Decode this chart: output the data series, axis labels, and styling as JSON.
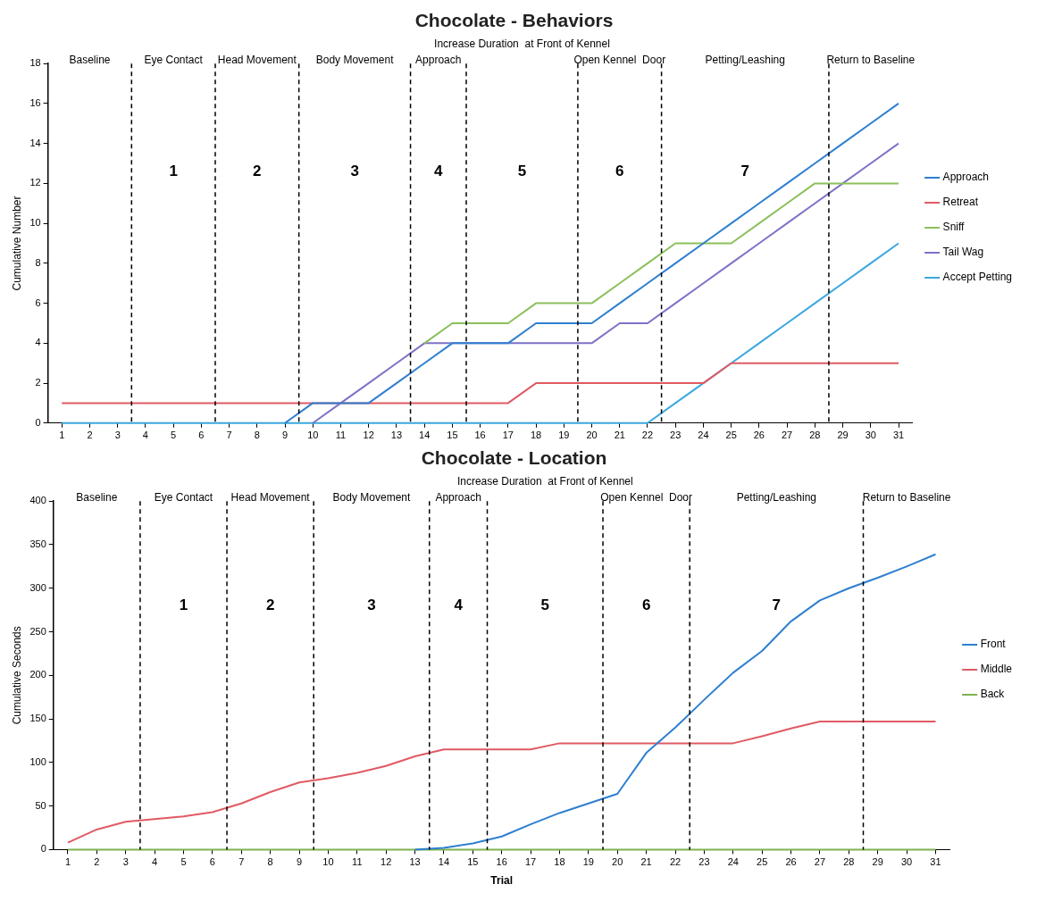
{
  "chart_data": [
    {
      "type": "line",
      "title": "Chocolate - Behaviors",
      "ylabel": "Cumulative Number",
      "x": [
        1,
        2,
        3,
        4,
        5,
        6,
        7,
        8,
        9,
        10,
        11,
        12,
        13,
        14,
        15,
        16,
        17,
        18,
        19,
        20,
        21,
        22,
        23,
        24,
        25,
        26,
        27,
        28,
        29,
        30,
        31
      ],
      "xlim": [
        0.5,
        31.5
      ],
      "xticks": [
        1,
        2,
        3,
        4,
        5,
        6,
        7,
        8,
        9,
        10,
        11,
        12,
        13,
        14,
        15,
        16,
        17,
        18,
        19,
        20,
        21,
        22,
        23,
        24,
        25,
        26,
        27,
        28,
        29,
        30,
        31
      ],
      "ylim": [
        0,
        18
      ],
      "yticks": [
        0,
        2,
        4,
        6,
        8,
        10,
        12,
        14,
        16,
        18
      ],
      "grid": false,
      "legend": "right",
      "series": [
        {
          "name": "Approach",
          "color": "#2e7fd0",
          "values": [
            null,
            null,
            null,
            null,
            null,
            null,
            null,
            null,
            0,
            1,
            1,
            1,
            2,
            3,
            4,
            4,
            4,
            5,
            5,
            5,
            6,
            7,
            8,
            9,
            10,
            11,
            12,
            13,
            14,
            15,
            16
          ]
        },
        {
          "name": "Retreat",
          "color": "#e05a64",
          "values": [
            1,
            1,
            1,
            1,
            1,
            1,
            1,
            1,
            1,
            1,
            1,
            1,
            1,
            1,
            1,
            1,
            1,
            2,
            2,
            2,
            2,
            2,
            2,
            2,
            3,
            3,
            3,
            3,
            3,
            3,
            3
          ]
        },
        {
          "name": "Sniff",
          "color": "#8cbf5a",
          "values": [
            null,
            null,
            null,
            null,
            null,
            null,
            null,
            null,
            null,
            null,
            null,
            null,
            null,
            4,
            5,
            5,
            5,
            6,
            6,
            6,
            7,
            8,
            9,
            9,
            9,
            10,
            11,
            12,
            12,
            12,
            12
          ]
        },
        {
          "name": "Tail Wag",
          "color": "#7d72c8",
          "values": [
            null,
            null,
            null,
            null,
            null,
            null,
            null,
            null,
            null,
            0,
            1,
            2,
            3,
            4,
            4,
            4,
            4,
            4,
            4,
            4,
            5,
            5,
            6,
            7,
            8,
            9,
            10,
            11,
            12,
            13,
            14
          ]
        },
        {
          "name": "Accept Petting",
          "color": "#3ba7e0",
          "values": [
            0,
            0,
            0,
            0,
            0,
            0,
            0,
            0,
            0,
            0,
            0,
            0,
            0,
            0,
            0,
            0,
            0,
            0,
            0,
            0,
            0,
            0,
            1,
            2,
            3,
            4,
            5,
            6,
            7,
            8,
            9
          ]
        }
      ],
      "ref_lines": [
        {
          "axis": "x",
          "value": 3.5,
          "color": "#000000",
          "line_style": "dashed"
        },
        {
          "axis": "x",
          "value": 6.5,
          "color": "#000000",
          "line_style": "dashed"
        },
        {
          "axis": "x",
          "value": 9.5,
          "color": "#000000",
          "line_style": "dashed"
        },
        {
          "axis": "x",
          "value": 13.5,
          "color": "#000000",
          "line_style": "dashed"
        },
        {
          "axis": "x",
          "value": 15.5,
          "color": "#000000",
          "line_style": "dashed"
        },
        {
          "axis": "x",
          "value": 19.5,
          "color": "#000000",
          "line_style": "dashed"
        },
        {
          "axis": "x",
          "value": 22.5,
          "color": "#000000",
          "line_style": "dashed"
        },
        {
          "axis": "x",
          "value": 28.5,
          "color": "#000000",
          "line_style": "dashed"
        }
      ],
      "annotations": [
        "Baseline",
        "Eye Contact",
        "Head Movement",
        "Body Movement",
        "Approach",
        "Increase Duration  at Front of Kennel",
        "Open Kennel  Door",
        "Petting/Leashing",
        "Return to Baseline",
        "1",
        "2",
        "3",
        "4",
        "5",
        "6",
        "7"
      ]
    },
    {
      "type": "line",
      "title": "Chocolate - Location",
      "xlabel": "Trial",
      "ylabel": "Cumulative Seconds",
      "x": [
        1,
        2,
        3,
        4,
        5,
        6,
        7,
        8,
        9,
        10,
        11,
        12,
        13,
        14,
        15,
        16,
        17,
        18,
        19,
        20,
        21,
        22,
        23,
        24,
        25,
        26,
        27,
        28,
        29,
        30,
        31
      ],
      "xlim": [
        0.5,
        31.5
      ],
      "xticks": [
        1,
        2,
        3,
        4,
        5,
        6,
        7,
        8,
        9,
        10,
        11,
        12,
        13,
        14,
        15,
        16,
        17,
        18,
        19,
        20,
        21,
        22,
        23,
        24,
        25,
        26,
        27,
        28,
        29,
        30,
        31
      ],
      "ylim": [
        0,
        400
      ],
      "yticks": [
        0,
        50,
        100,
        150,
        200,
        250,
        300,
        350,
        400
      ],
      "grid": false,
      "legend": "right",
      "series": [
        {
          "name": "Front",
          "color": "#2e7fd0",
          "values": [
            null,
            null,
            null,
            null,
            null,
            null,
            null,
            null,
            null,
            null,
            null,
            null,
            0,
            2,
            7,
            15,
            29,
            42,
            53,
            64,
            111,
            140,
            172,
            203,
            228,
            262,
            286,
            300,
            312,
            325,
            339
          ]
        },
        {
          "name": "Middle",
          "color": "#e05a64",
          "values": [
            8,
            23,
            32,
            35,
            38,
            43,
            53,
            66,
            77,
            82,
            88,
            96,
            107,
            115,
            115,
            115,
            115,
            122,
            122,
            122,
            122,
            122,
            122,
            122,
            130,
            139,
            147,
            147,
            147,
            147,
            147
          ]
        },
        {
          "name": "Back",
          "color": "#7fb24e",
          "values": [
            0,
            0,
            0,
            0,
            0,
            0,
            0,
            0,
            0,
            0,
            0,
            0,
            0,
            0,
            0,
            0,
            0,
            0,
            0,
            0,
            0,
            0,
            0,
            0,
            0,
            0,
            0,
            0,
            0,
            0,
            0
          ]
        }
      ],
      "ref_lines": [
        {
          "axis": "x",
          "value": 3.5,
          "color": "#000000",
          "line_style": "dashed"
        },
        {
          "axis": "x",
          "value": 6.5,
          "color": "#000000",
          "line_style": "dashed"
        },
        {
          "axis": "x",
          "value": 9.5,
          "color": "#000000",
          "line_style": "dashed"
        },
        {
          "axis": "x",
          "value": 13.5,
          "color": "#000000",
          "line_style": "dashed"
        },
        {
          "axis": "x",
          "value": 15.5,
          "color": "#000000",
          "line_style": "dashed"
        },
        {
          "axis": "x",
          "value": 19.5,
          "color": "#000000",
          "line_style": "dashed"
        },
        {
          "axis": "x",
          "value": 22.5,
          "color": "#000000",
          "line_style": "dashed"
        },
        {
          "axis": "x",
          "value": 28.5,
          "color": "#000000",
          "line_style": "dashed"
        }
      ],
      "annotations": [
        "Baseline",
        "Eye Contact",
        "Head Movement",
        "Body Movement",
        "Approach",
        "Increase Duration  at Front of Kennel",
        "Open Kennel  Door",
        "Petting/Leashing",
        "Return to Baseline",
        "1",
        "2",
        "3",
        "4",
        "5",
        "6",
        "7"
      ]
    }
  ]
}
